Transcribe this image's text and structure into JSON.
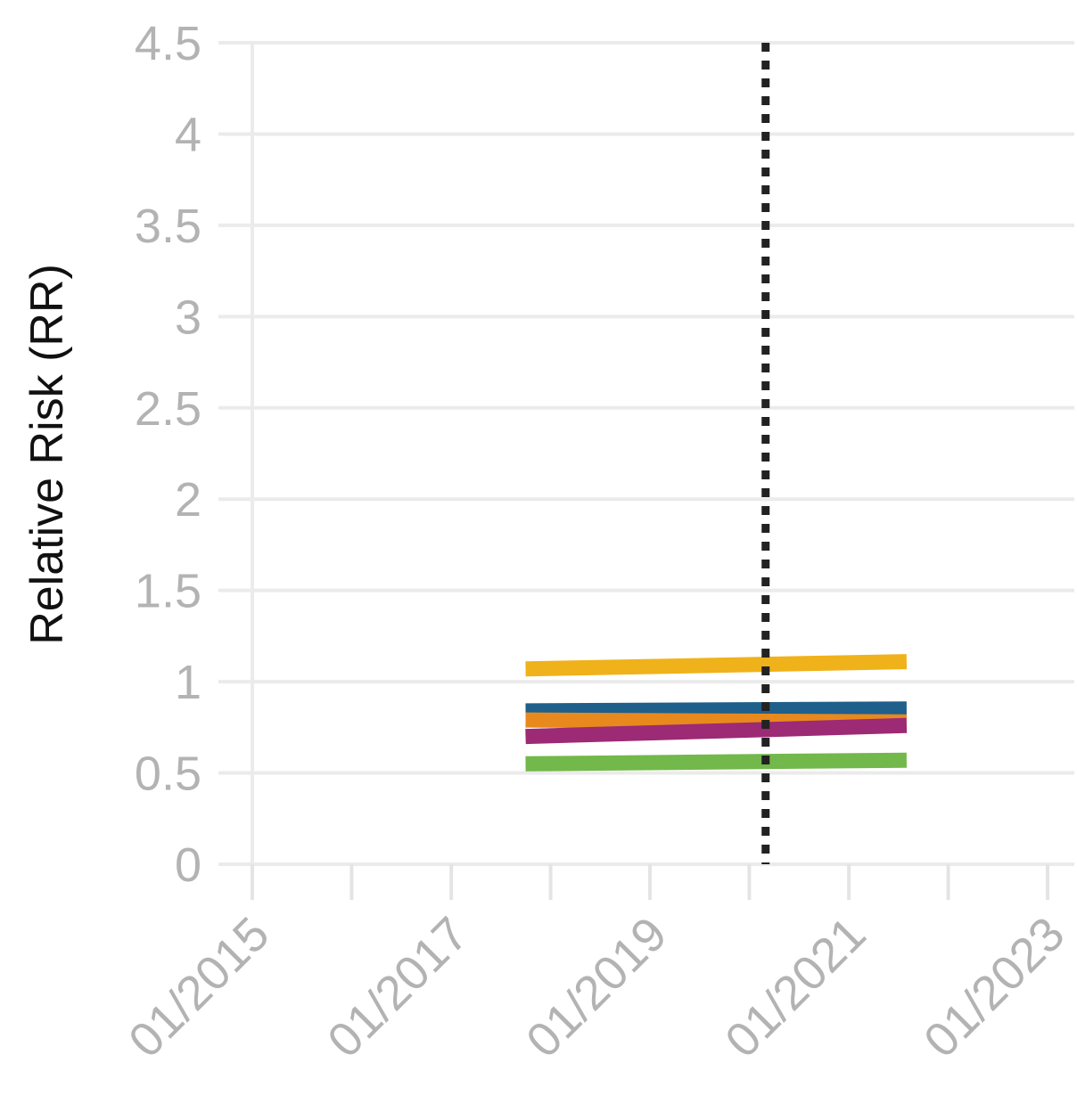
{
  "chart_data": {
    "type": "line",
    "ylabel": "Relative Risk (RR)",
    "xlabel": "",
    "title": "",
    "ylim": [
      0,
      4.5
    ],
    "yticks": [
      "0",
      "0.5",
      "1",
      "1.5",
      "2",
      "2.5",
      "3",
      "3.5",
      "4",
      "4.5"
    ],
    "xlim": [
      "2015-01-01",
      "2023-01-01"
    ],
    "xticks_labeled": [
      "01/2015",
      "01/2017",
      "01/2019",
      "01/2021",
      "01/2023"
    ],
    "xticks_minor": [
      "2016-01-01",
      "2018-01-01",
      "2020-01-01",
      "2022-01-01"
    ],
    "grid": true,
    "reference_line": {
      "x": "2020-03-01",
      "style": "dotted"
    },
    "series": [
      {
        "color": "#f0b21a",
        "x": [
          "2017-10-01",
          "2021-08-01"
        ],
        "values": [
          1.07,
          1.11
        ]
      },
      {
        "color": "#1f5f8b",
        "x": [
          "2017-10-01",
          "2021-08-01"
        ],
        "values": [
          0.84,
          0.85
        ]
      },
      {
        "color": "#e8891d",
        "x": [
          "2017-10-01",
          "2021-08-01"
        ],
        "values": [
          0.79,
          0.78
        ]
      },
      {
        "color": "#9c2a75",
        "x": [
          "2017-10-01",
          "2021-08-01"
        ],
        "values": [
          0.7,
          0.76
        ]
      },
      {
        "color": "#72b84a",
        "x": [
          "2017-10-01",
          "2021-08-01"
        ],
        "values": [
          0.55,
          0.57
        ]
      }
    ]
  }
}
